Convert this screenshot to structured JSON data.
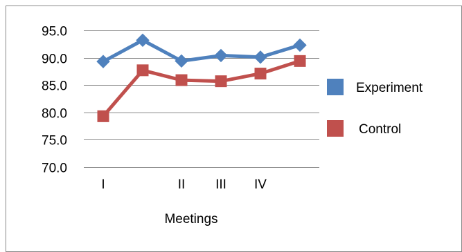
{
  "chart_data": {
    "type": "line",
    "title": "",
    "xlabel": "Meetings",
    "ylabel": "",
    "categories": [
      "I",
      "",
      "II",
      "III",
      "IV",
      ""
    ],
    "ylim": [
      70.0,
      95.0
    ],
    "y_ticks": [
      "70.0",
      "75.0",
      "80.0",
      "85.0",
      "90.0",
      "95.0"
    ],
    "grid": true,
    "legend_position": "right",
    "series": [
      {
        "name": "Experiment",
        "color": "#4F81BD",
        "marker": "diamond",
        "values": [
          89.3,
          93.2,
          89.4,
          90.4,
          90.1,
          92.3
        ]
      },
      {
        "name": "Control",
        "color": "#C0504D",
        "marker": "square",
        "values": [
          79.3,
          87.7,
          85.9,
          85.7,
          87.1,
          89.4
        ]
      }
    ]
  }
}
